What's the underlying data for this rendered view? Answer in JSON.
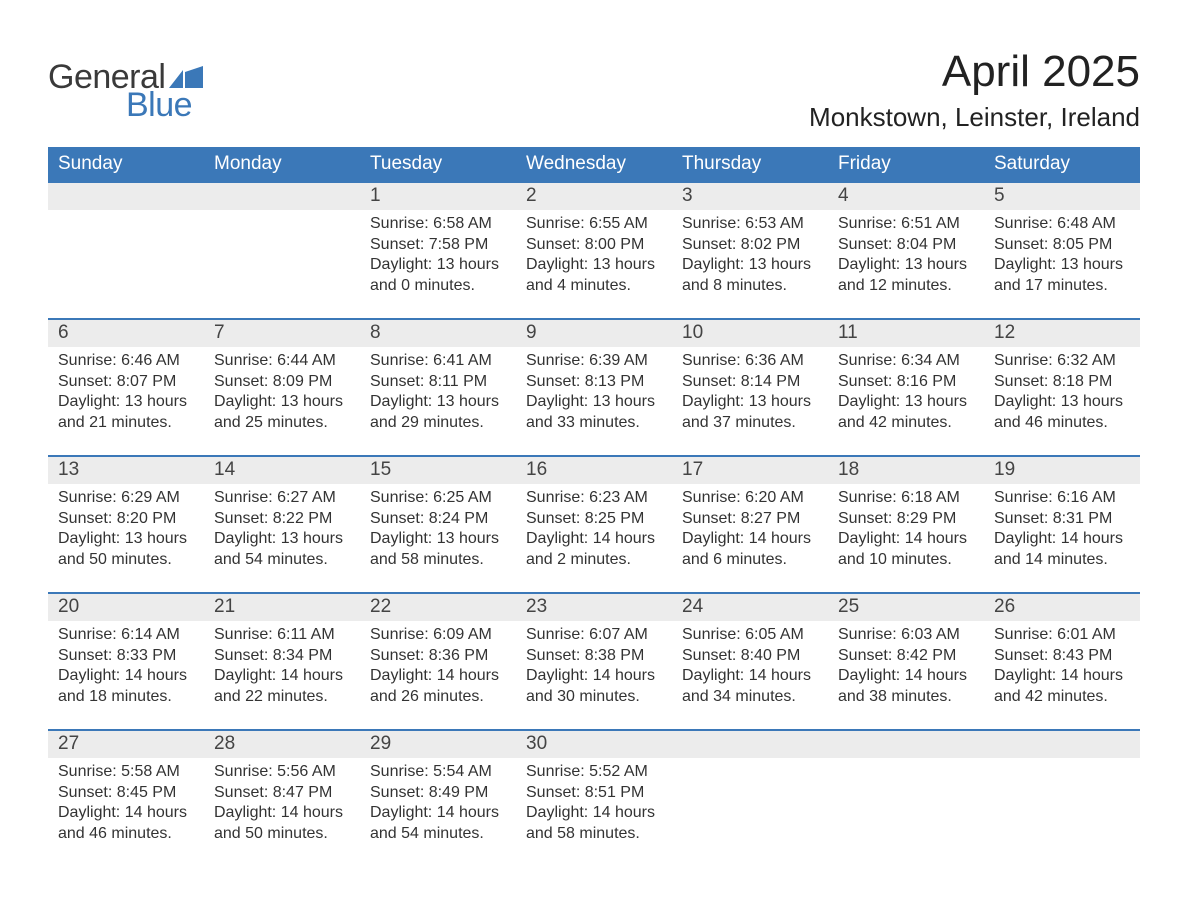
{
  "logo": {
    "word1": "General",
    "word2": "Blue",
    "flag_color": "#3b78b8",
    "text_color": "#3a3a3a"
  },
  "title": "April 2025",
  "location": "Monkstown, Leinster, Ireland",
  "colors": {
    "header_bg": "#3b78b8",
    "header_text": "#ffffff",
    "daynum_bg": "#ececec",
    "week_border": "#3b78b8",
    "body_text": "#333333",
    "page_bg": "#ffffff"
  },
  "weekdays": [
    "Sunday",
    "Monday",
    "Tuesday",
    "Wednesday",
    "Thursday",
    "Friday",
    "Saturday"
  ],
  "weeks": [
    [
      null,
      null,
      {
        "n": "1",
        "sunrise": "6:58 AM",
        "sunset": "7:58 PM",
        "dh": "13",
        "dm": "0"
      },
      {
        "n": "2",
        "sunrise": "6:55 AM",
        "sunset": "8:00 PM",
        "dh": "13",
        "dm": "4"
      },
      {
        "n": "3",
        "sunrise": "6:53 AM",
        "sunset": "8:02 PM",
        "dh": "13",
        "dm": "8"
      },
      {
        "n": "4",
        "sunrise": "6:51 AM",
        "sunset": "8:04 PM",
        "dh": "13",
        "dm": "12"
      },
      {
        "n": "5",
        "sunrise": "6:48 AM",
        "sunset": "8:05 PM",
        "dh": "13",
        "dm": "17"
      }
    ],
    [
      {
        "n": "6",
        "sunrise": "6:46 AM",
        "sunset": "8:07 PM",
        "dh": "13",
        "dm": "21"
      },
      {
        "n": "7",
        "sunrise": "6:44 AM",
        "sunset": "8:09 PM",
        "dh": "13",
        "dm": "25"
      },
      {
        "n": "8",
        "sunrise": "6:41 AM",
        "sunset": "8:11 PM",
        "dh": "13",
        "dm": "29"
      },
      {
        "n": "9",
        "sunrise": "6:39 AM",
        "sunset": "8:13 PM",
        "dh": "13",
        "dm": "33"
      },
      {
        "n": "10",
        "sunrise": "6:36 AM",
        "sunset": "8:14 PM",
        "dh": "13",
        "dm": "37"
      },
      {
        "n": "11",
        "sunrise": "6:34 AM",
        "sunset": "8:16 PM",
        "dh": "13",
        "dm": "42"
      },
      {
        "n": "12",
        "sunrise": "6:32 AM",
        "sunset": "8:18 PM",
        "dh": "13",
        "dm": "46"
      }
    ],
    [
      {
        "n": "13",
        "sunrise": "6:29 AM",
        "sunset": "8:20 PM",
        "dh": "13",
        "dm": "50"
      },
      {
        "n": "14",
        "sunrise": "6:27 AM",
        "sunset": "8:22 PM",
        "dh": "13",
        "dm": "54"
      },
      {
        "n": "15",
        "sunrise": "6:25 AM",
        "sunset": "8:24 PM",
        "dh": "13",
        "dm": "58"
      },
      {
        "n": "16",
        "sunrise": "6:23 AM",
        "sunset": "8:25 PM",
        "dh": "14",
        "dm": "2"
      },
      {
        "n": "17",
        "sunrise": "6:20 AM",
        "sunset": "8:27 PM",
        "dh": "14",
        "dm": "6"
      },
      {
        "n": "18",
        "sunrise": "6:18 AM",
        "sunset": "8:29 PM",
        "dh": "14",
        "dm": "10"
      },
      {
        "n": "19",
        "sunrise": "6:16 AM",
        "sunset": "8:31 PM",
        "dh": "14",
        "dm": "14"
      }
    ],
    [
      {
        "n": "20",
        "sunrise": "6:14 AM",
        "sunset": "8:33 PM",
        "dh": "14",
        "dm": "18"
      },
      {
        "n": "21",
        "sunrise": "6:11 AM",
        "sunset": "8:34 PM",
        "dh": "14",
        "dm": "22"
      },
      {
        "n": "22",
        "sunrise": "6:09 AM",
        "sunset": "8:36 PM",
        "dh": "14",
        "dm": "26"
      },
      {
        "n": "23",
        "sunrise": "6:07 AM",
        "sunset": "8:38 PM",
        "dh": "14",
        "dm": "30"
      },
      {
        "n": "24",
        "sunrise": "6:05 AM",
        "sunset": "8:40 PM",
        "dh": "14",
        "dm": "34"
      },
      {
        "n": "25",
        "sunrise": "6:03 AM",
        "sunset": "8:42 PM",
        "dh": "14",
        "dm": "38"
      },
      {
        "n": "26",
        "sunrise": "6:01 AM",
        "sunset": "8:43 PM",
        "dh": "14",
        "dm": "42"
      }
    ],
    [
      {
        "n": "27",
        "sunrise": "5:58 AM",
        "sunset": "8:45 PM",
        "dh": "14",
        "dm": "46"
      },
      {
        "n": "28",
        "sunrise": "5:56 AM",
        "sunset": "8:47 PM",
        "dh": "14",
        "dm": "50"
      },
      {
        "n": "29",
        "sunrise": "5:54 AM",
        "sunset": "8:49 PM",
        "dh": "14",
        "dm": "54"
      },
      {
        "n": "30",
        "sunrise": "5:52 AM",
        "sunset": "8:51 PM",
        "dh": "14",
        "dm": "58"
      },
      null,
      null,
      null
    ]
  ],
  "labels": {
    "sunrise": "Sunrise: ",
    "sunset": "Sunset: ",
    "daylight1": "Daylight: ",
    "daylight2": " hours",
    "daylight3": "and ",
    "daylight4": " minutes."
  }
}
